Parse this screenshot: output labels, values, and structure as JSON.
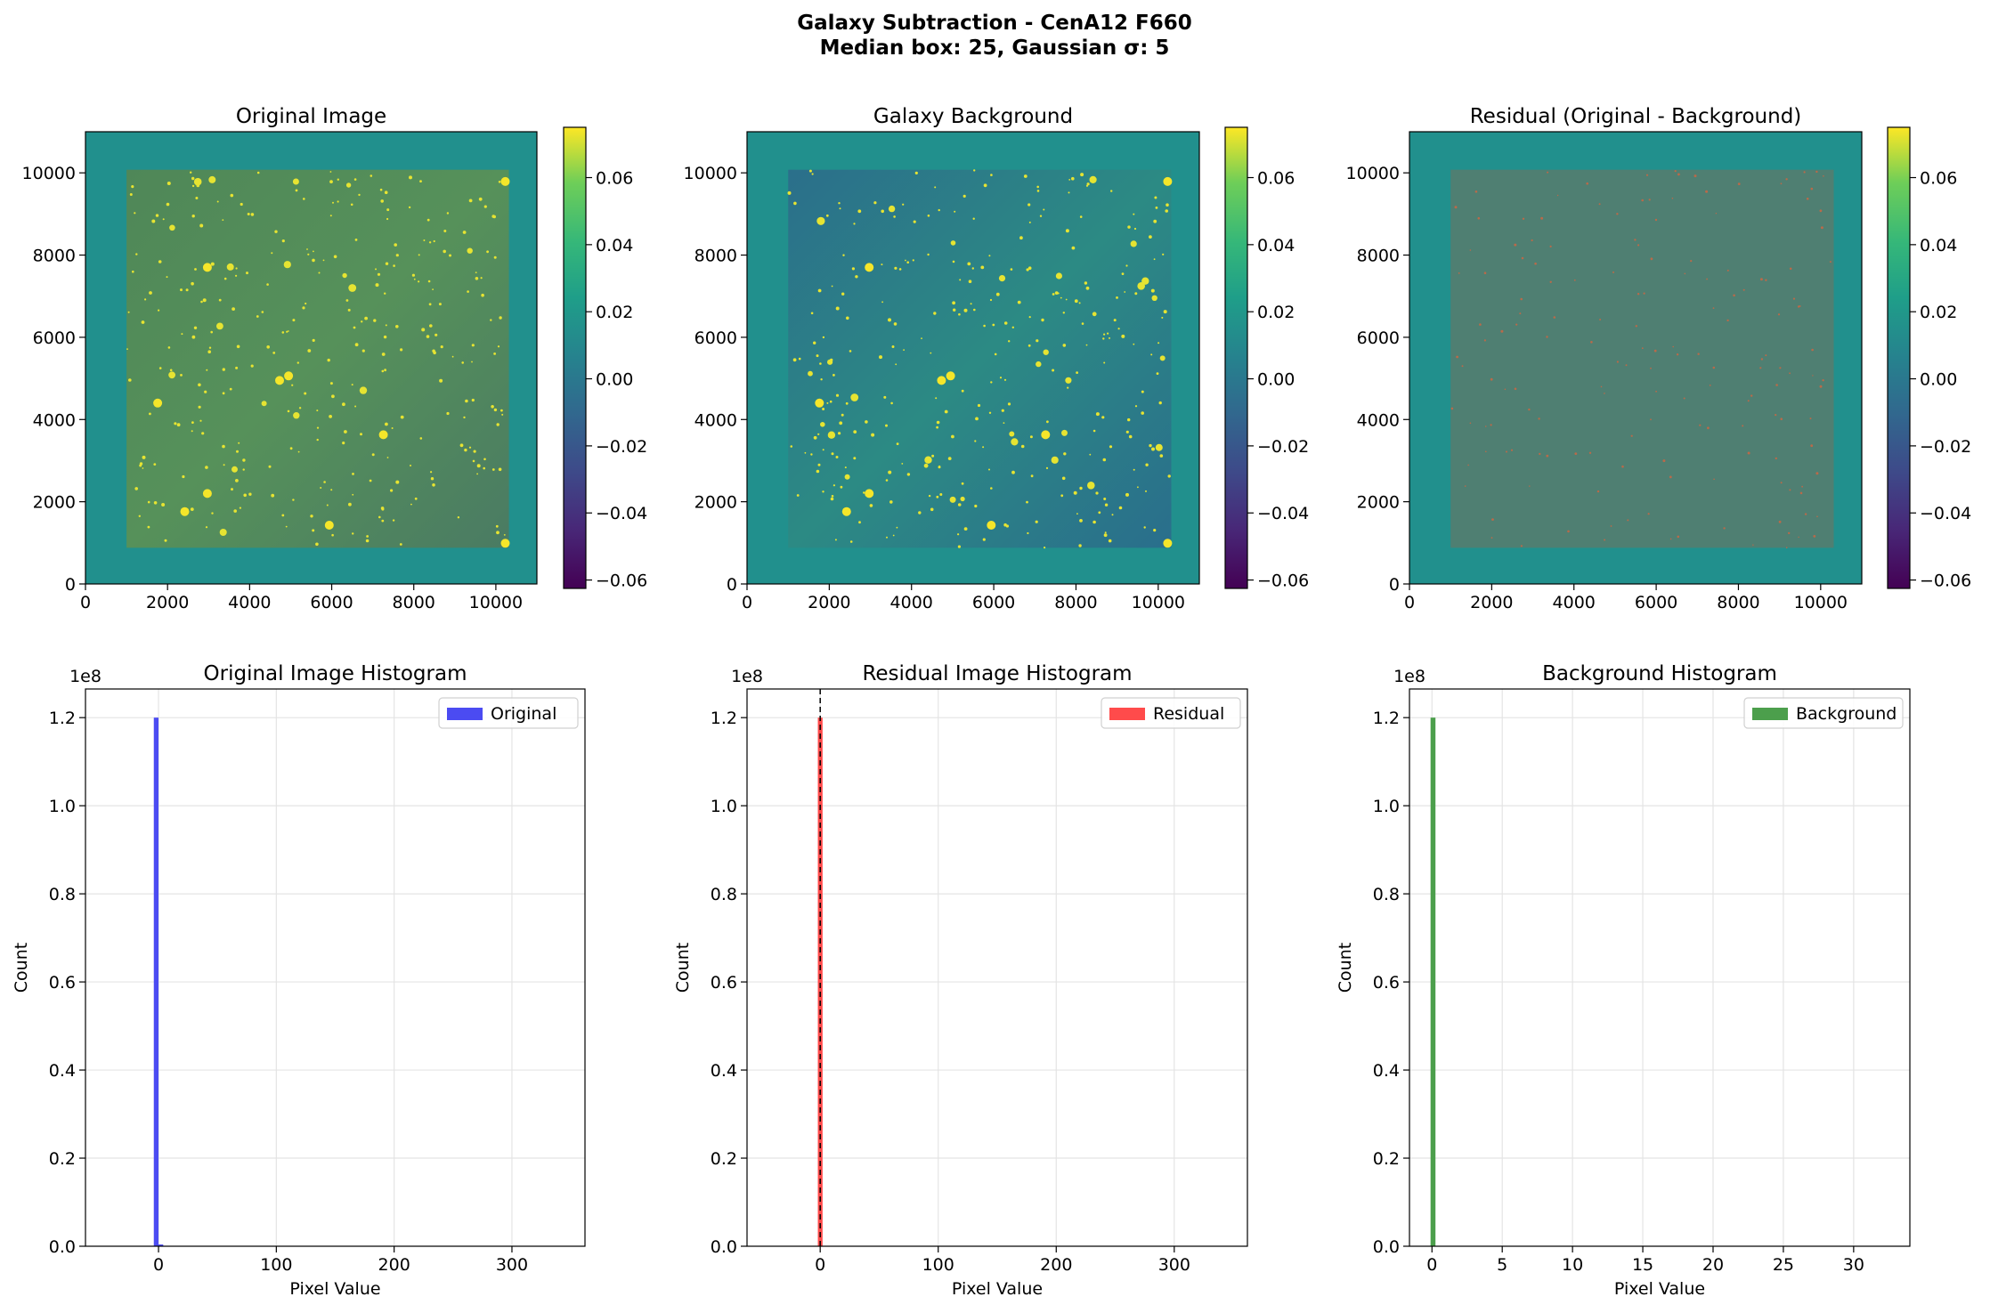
{
  "figure": {
    "title_line1": "Galaxy Subtraction - CenA12 F660",
    "title_line2": "Median box: 25, Gaussian σ: 5"
  },
  "colorbar": {
    "ticks": [
      "0.06",
      "0.04",
      "0.02",
      "0.00",
      "−0.02",
      "−0.04",
      "−0.06"
    ],
    "tick_values": [
      0.06,
      0.04,
      0.02,
      0.0,
      -0.02,
      -0.04,
      -0.06
    ],
    "range": [
      -0.0625,
      0.075
    ]
  },
  "image_panels": [
    {
      "title": "Original Image",
      "style": "original",
      "x_ticks": [
        "0",
        "2000",
        "4000",
        "6000",
        "8000",
        "10000"
      ],
      "y_ticks": [
        "0",
        "2000",
        "4000",
        "6000",
        "8000",
        "10000"
      ]
    },
    {
      "title": "Galaxy Background",
      "style": "background",
      "x_ticks": [
        "0",
        "2000",
        "4000",
        "6000",
        "8000",
        "10000"
      ],
      "y_ticks": [
        "0",
        "2000",
        "4000",
        "6000",
        "8000",
        "10000"
      ]
    },
    {
      "title": "Residual (Original - Background)",
      "style": "residual",
      "x_ticks": [
        "0",
        "2000",
        "4000",
        "6000",
        "8000",
        "10000"
      ],
      "y_ticks": [
        "0",
        "2000",
        "4000",
        "6000",
        "8000",
        "10000"
      ]
    }
  ],
  "chart_data": [
    {
      "type": "bar",
      "title": "Original Image Histogram",
      "xlabel": "Pixel Value",
      "ylabel": "Count",
      "y_scale_label": "1e8",
      "xlim": [
        -62,
        362
      ],
      "ylim": [
        0,
        1.265
      ],
      "x_ticks": [
        0,
        100,
        200,
        300
      ],
      "y_ticks": [
        0.0,
        0.2,
        0.4,
        0.6,
        0.8,
        1.0,
        1.2
      ],
      "y_tick_labels": [
        "0.0",
        "0.2",
        "0.4",
        "0.6",
        "0.8",
        "1.0",
        "1.2"
      ],
      "grid": true,
      "legend": {
        "label": "Original",
        "placement": "top-right",
        "color": "#4b4bf2"
      },
      "series": [
        {
          "name": "Original",
          "color": "#4b4bf2",
          "bins": [
            {
              "x0": -4,
              "x1": 0,
              "count": 1.2
            },
            {
              "x0": 0,
              "x1": 4,
              "count": 0.004
            }
          ]
        }
      ],
      "vline": null
    },
    {
      "type": "bar",
      "title": "Residual Image Histogram",
      "xlabel": "Pixel Value",
      "ylabel": "Count",
      "y_scale_label": "1e8",
      "xlim": [
        -62,
        362
      ],
      "ylim": [
        0,
        1.265
      ],
      "x_ticks": [
        0,
        100,
        200,
        300
      ],
      "y_ticks": [
        0.0,
        0.2,
        0.4,
        0.6,
        0.8,
        1.0,
        1.2
      ],
      "y_tick_labels": [
        "0.0",
        "0.2",
        "0.4",
        "0.6",
        "0.8",
        "1.0",
        "1.2"
      ],
      "grid": true,
      "legend": {
        "label": "Residual",
        "placement": "top-right",
        "color": "#ff4b4b"
      },
      "series": [
        {
          "name": "Residual",
          "color": "#ff4b4b",
          "bins": [
            {
              "x0": -2,
              "x1": 2,
              "count": 1.2
            }
          ]
        }
      ],
      "vline": {
        "x": 0,
        "style": "dashed",
        "color": "#000000"
      }
    },
    {
      "type": "bar",
      "title": "Background Histogram",
      "xlabel": "Pixel Value",
      "ylabel": "Count",
      "y_scale_label": "1e8",
      "xlim": [
        -1.6,
        34
      ],
      "ylim": [
        0,
        1.265
      ],
      "x_ticks": [
        0,
        5,
        10,
        15,
        20,
        25,
        30
      ],
      "y_ticks": [
        0.0,
        0.2,
        0.4,
        0.6,
        0.8,
        1.0,
        1.2
      ],
      "y_tick_labels": [
        "0.0",
        "0.2",
        "0.4",
        "0.6",
        "0.8",
        "1.0",
        "1.2"
      ],
      "grid": true,
      "legend": {
        "label": "Background",
        "placement": "top-right",
        "color": "#4c9f4c"
      },
      "series": [
        {
          "name": "Background",
          "color": "#4c9f4c",
          "bins": [
            {
              "x0": -0.1,
              "x1": 0.25,
              "count": 1.2
            }
          ]
        }
      ],
      "vline": null
    }
  ]
}
